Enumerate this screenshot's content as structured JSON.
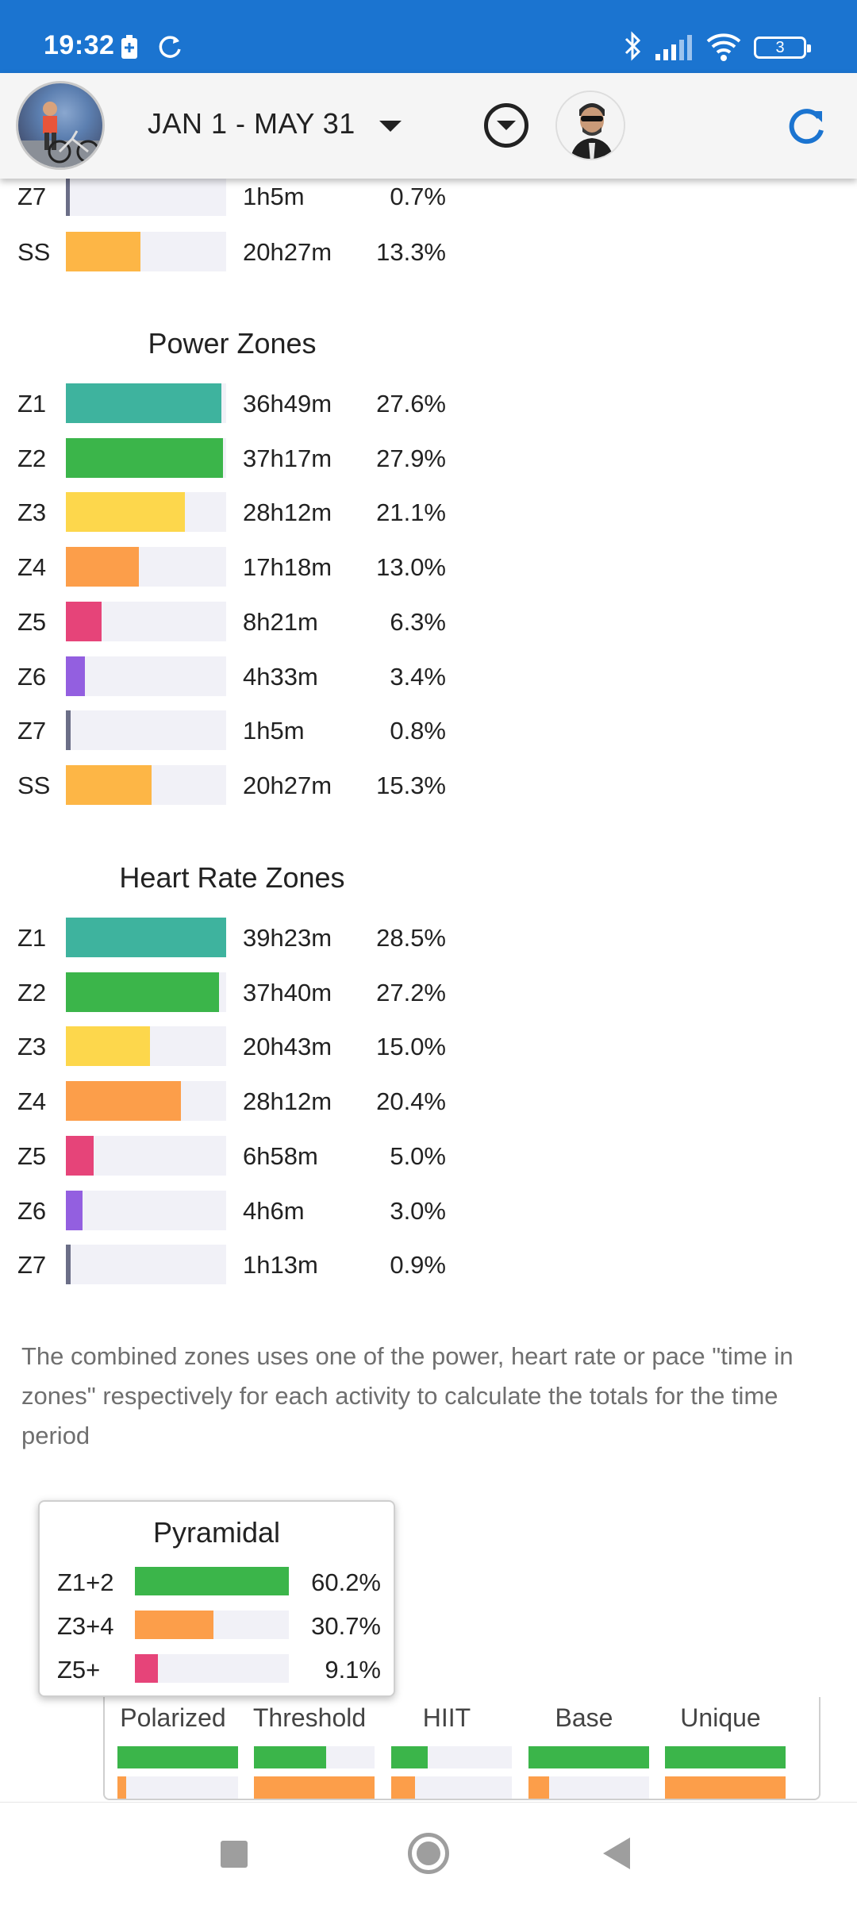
{
  "status_bar": {
    "time": "19:32",
    "battery": "3"
  },
  "header": {
    "date_range": "JAN 1 - MAY 31"
  },
  "colors": {
    "z1": "#3eb39e",
    "z2": "#3bb54a",
    "z3": "#fdd74c",
    "z4": "#fc9e4a",
    "z5": "#e64479",
    "z6": "#935fe0",
    "z7": "#6b6e87",
    "ss": "#fdb646",
    "track": "#f1f1f7",
    "status_bar": "#1b74d0",
    "refresh": "#1b74d0"
  },
  "combined_zones_tail": [
    {
      "zone": "Z7",
      "time": "1h5m",
      "pct": "0.7%",
      "fraction": 0.007,
      "color_key": "z7"
    },
    {
      "zone": "SS",
      "time": "20h27m",
      "pct": "13.3%",
      "fraction": 0.133,
      "color_key": "ss"
    }
  ],
  "power_zones": {
    "title": "Power Zones",
    "rows": [
      {
        "zone": "Z1",
        "time": "36h49m",
        "pct": "27.6%",
        "fraction": 0.276,
        "color_key": "z1"
      },
      {
        "zone": "Z2",
        "time": "37h17m",
        "pct": "27.9%",
        "fraction": 0.279,
        "color_key": "z2"
      },
      {
        "zone": "Z3",
        "time": "28h12m",
        "pct": "21.1%",
        "fraction": 0.211,
        "color_key": "z3"
      },
      {
        "zone": "Z4",
        "time": "17h18m",
        "pct": "13.0%",
        "fraction": 0.13,
        "color_key": "z4"
      },
      {
        "zone": "Z5",
        "time": "8h21m",
        "pct": "6.3%",
        "fraction": 0.063,
        "color_key": "z5"
      },
      {
        "zone": "Z6",
        "time": "4h33m",
        "pct": "3.4%",
        "fraction": 0.034,
        "color_key": "z6"
      },
      {
        "zone": "Z7",
        "time": "1h5m",
        "pct": "0.8%",
        "fraction": 0.008,
        "color_key": "z7"
      },
      {
        "zone": "SS",
        "time": "20h27m",
        "pct": "15.3%",
        "fraction": 0.153,
        "color_key": "ss"
      }
    ]
  },
  "hr_zones": {
    "title": "Heart Rate Zones",
    "rows": [
      {
        "zone": "Z1",
        "time": "39h23m",
        "pct": "28.5%",
        "fraction": 0.285,
        "color_key": "z1"
      },
      {
        "zone": "Z2",
        "time": "37h40m",
        "pct": "27.2%",
        "fraction": 0.272,
        "color_key": "z2"
      },
      {
        "zone": "Z3",
        "time": "20h43m",
        "pct": "15.0%",
        "fraction": 0.15,
        "color_key": "z3"
      },
      {
        "zone": "Z4",
        "time": "28h12m",
        "pct": "20.4%",
        "fraction": 0.204,
        "color_key": "z4"
      },
      {
        "zone": "Z5",
        "time": "6h58m",
        "pct": "5.0%",
        "fraction": 0.05,
        "color_key": "z5"
      },
      {
        "zone": "Z6",
        "time": "4h6m",
        "pct": "3.0%",
        "fraction": 0.03,
        "color_key": "z6"
      },
      {
        "zone": "Z7",
        "time": "1h13m",
        "pct": "0.9%",
        "fraction": 0.009,
        "color_key": "z7"
      }
    ]
  },
  "note": "The combined zones uses one of the power, heart rate or pace \"time in zones\" respectively for each activity to calculate the totals for the time period",
  "pyramidal": {
    "title": "Pyramidal",
    "rows": [
      {
        "label": "Z1+2",
        "pct": "60.2%",
        "fraction": 0.602,
        "color_key": "z2"
      },
      {
        "label": "Z3+4",
        "pct": "30.7%",
        "fraction": 0.307,
        "color_key": "z4"
      },
      {
        "label": "Z5+",
        "pct": "9.1%",
        "fraction": 0.091,
        "color_key": "z5"
      }
    ]
  },
  "models": [
    {
      "name": "Polarized",
      "green": 1.0,
      "orange": 0.07
    },
    {
      "name": "Threshold",
      "green": 0.6,
      "orange": 1.0
    },
    {
      "name": "HIIT",
      "green": 0.3,
      "orange": 0.2
    },
    {
      "name": "Base",
      "green": 1.0,
      "orange": 0.17
    },
    {
      "name": "Unique",
      "green": 1.0,
      "orange": 1.0
    }
  ]
}
